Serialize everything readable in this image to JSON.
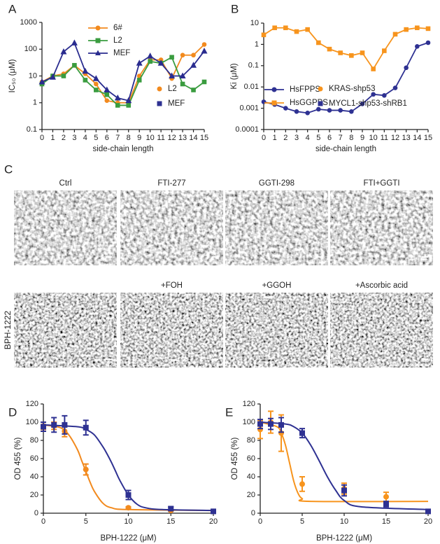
{
  "chart_data": [
    {
      "type": "line",
      "panel": "A",
      "xlabel": "side-chain length",
      "ylabel": "IC₅₀ (μM)",
      "log_y": true,
      "grid": false,
      "x": [
        0,
        1,
        2,
        3,
        4,
        5,
        6,
        7,
        8,
        9,
        10,
        11,
        12,
        13,
        14,
        15
      ],
      "xlim": [
        0,
        15
      ],
      "xticks": [
        0,
        1,
        2,
        3,
        4,
        5,
        6,
        7,
        8,
        9,
        10,
        11,
        12,
        13,
        14,
        15
      ],
      "ylim": [
        0.1,
        1000
      ],
      "yticks": [
        0.1,
        1,
        10,
        100,
        1000
      ],
      "series": [
        {
          "name": "6#",
          "color": "#f28a1e",
          "marker": "circle",
          "values": [
            6,
            10,
            12,
            25,
            12,
            5,
            1.2,
            1,
            1,
            10,
            40,
            40,
            8,
            60,
            60,
            150
          ]
        },
        {
          "name": "L2",
          "color": "#3a9c3f",
          "marker": "square",
          "values": [
            5,
            10,
            10,
            25,
            7,
            3,
            2,
            0.8,
            0.8,
            7,
            35,
            30,
            50,
            5,
            3,
            6
          ]
        },
        {
          "name": "MEF",
          "color": "#2a2c8f",
          "marker": "triangle",
          "values": [
            6,
            9,
            80,
            170,
            15,
            8,
            3,
            1.5,
            1.2,
            30,
            55,
            30,
            10,
            10,
            25,
            85
          ]
        }
      ]
    },
    {
      "type": "line",
      "panel": "B",
      "xlabel": "side-chain length",
      "ylabel": "Ki (μM)",
      "log_y": true,
      "grid": false,
      "x": [
        0,
        1,
        2,
        3,
        4,
        5,
        6,
        7,
        8,
        9,
        10,
        11,
        12,
        13,
        14,
        15
      ],
      "xlim": [
        0,
        15
      ],
      "xticks": [
        0,
        1,
        2,
        3,
        4,
        5,
        6,
        7,
        8,
        9,
        10,
        11,
        12,
        13,
        14,
        15
      ],
      "ylim": [
        0.0001,
        10
      ],
      "yticks": [
        0.0001,
        0.001,
        0.01,
        0.1,
        1,
        10
      ],
      "series": [
        {
          "name": "HsFPPS",
          "color": "#2e3192",
          "marker": "circle",
          "values": [
            0.002,
            0.0015,
            0.001,
            0.0007,
            0.0006,
            0.0009,
            0.0008,
            0.0008,
            0.0007,
            0.0016,
            0.0045,
            0.004,
            0.009,
            0.08,
            0.8,
            1.2
          ]
        },
        {
          "name": "HsGGPPS",
          "color": "#f7941d",
          "marker": "square",
          "values": [
            2.8,
            6,
            6,
            4,
            5,
            1.2,
            0.6,
            0.4,
            0.3,
            0.4,
            0.07,
            0.5,
            3,
            5,
            6,
            5.5
          ]
        }
      ]
    },
    {
      "type": "scatter",
      "panel": "D",
      "xlabel": "BPH-1222 (μM)",
      "ylabel": "OD 455 (%)",
      "log_y": false,
      "grid": false,
      "xlim": [
        0,
        20
      ],
      "xticks": [
        0,
        5,
        10,
        15,
        20
      ],
      "ylim": [
        0,
        120
      ],
      "yticks": [
        0,
        20,
        40,
        60,
        80,
        100,
        120
      ],
      "series": [
        {
          "name": "L2",
          "color": "#f28a1e",
          "marker": "circle",
          "x": [
            0,
            1.25,
            2.5,
            5,
            10,
            15,
            20
          ],
          "values": [
            96,
            96,
            90,
            48,
            6,
            3,
            2
          ],
          "errors": [
            4,
            4,
            6,
            6,
            1,
            1,
            1
          ],
          "curve": {
            "x": [
              0,
              2,
              3,
              4,
              4.5,
              5,
              5.5,
              6,
              7,
              8,
              10,
              20
            ],
            "values": [
              97,
              94,
              86,
              70,
              58,
              46,
              34,
              24,
              11,
              6,
              4,
              3
            ]
          }
        },
        {
          "name": "MEF",
          "color": "#2e3192",
          "marker": "square",
          "x": [
            0,
            1.25,
            2.5,
            5,
            10,
            15,
            20
          ],
          "values": [
            95,
            97,
            97,
            94,
            20,
            5,
            2
          ],
          "errors": [
            5,
            8,
            10,
            8,
            5,
            2,
            1
          ],
          "curve": {
            "x": [
              0,
              4,
              5,
              6,
              7,
              7.5,
              8,
              8.5,
              9,
              10,
              11,
              12,
              14,
              20
            ],
            "values": [
              97,
              95,
              92,
              86,
              73,
              65,
              56,
              46,
              36,
              20,
              10,
              6,
              4,
              3
            ]
          }
        }
      ]
    },
    {
      "type": "scatter",
      "panel": "E",
      "xlabel": "BPH-1222 (μM)",
      "ylabel": "OD 455 (%)",
      "log_y": false,
      "grid": false,
      "xlim": [
        0,
        20
      ],
      "xticks": [
        0,
        5,
        10,
        15,
        20
      ],
      "ylim": [
        0,
        120
      ],
      "yticks": [
        0,
        20,
        40,
        60,
        80,
        100,
        120
      ],
      "series": [
        {
          "name": "KRAS-shp53",
          "color": "#f7941d",
          "marker": "circle",
          "x": [
            0,
            1.25,
            2.5,
            5,
            10,
            15
          ],
          "values": [
            92,
            100,
            88,
            32,
            27,
            18
          ],
          "errors": [
            10,
            12,
            20,
            8,
            6,
            5
          ],
          "curve": {
            "x": [
              0,
              2,
              2.5,
              3,
              3.5,
              4,
              4.5,
              5,
              6,
              20
            ],
            "values": [
              100,
              95,
              88,
              75,
              55,
              35,
              22,
              16,
              13,
              13
            ]
          }
        },
        {
          "name": "MYCL1-shp53-shRB1",
          "color": "#2e3192",
          "marker": "square",
          "x": [
            0,
            1.25,
            2.5,
            5,
            10,
            15,
            20
          ],
          "values": [
            98,
            98,
            97,
            88,
            25,
            10,
            2
          ],
          "errors": [
            5,
            6,
            8,
            5,
            6,
            3,
            1
          ],
          "curve": {
            "x": [
              0,
              3,
              4,
              5,
              6,
              7,
              8,
              9,
              10,
              12,
              20
            ],
            "values": [
              100,
              98,
              95,
              88,
              75,
              58,
              40,
              25,
              14,
              7,
              4
            ]
          }
        }
      ]
    }
  ],
  "image_panel": {
    "panel": "C",
    "rows": [
      {
        "label": null,
        "images": [
          "Ctrl",
          "FTI-277",
          "GGTI-298",
          "FTI+GGTI"
        ]
      },
      {
        "label": "BPH-1222",
        "images": [
          null,
          "+FOH",
          "+GGOH",
          "+Ascorbic acid"
        ]
      }
    ]
  }
}
